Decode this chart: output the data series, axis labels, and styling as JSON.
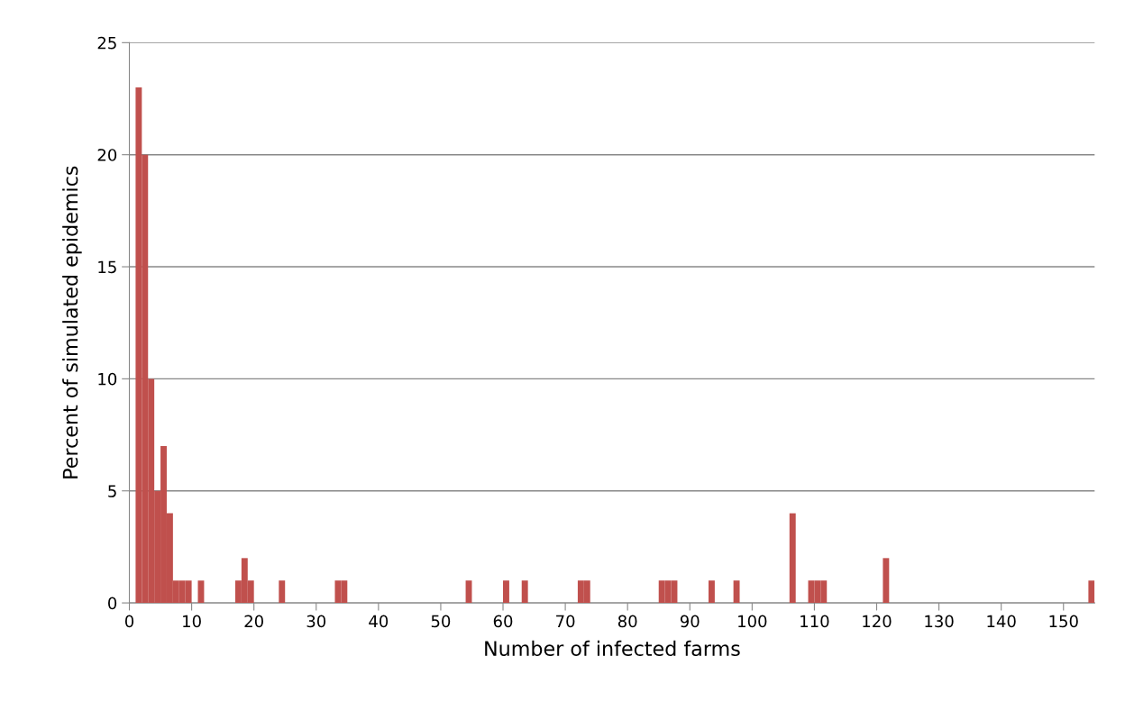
{
  "chart_data": {
    "type": "histogram",
    "xlabel": "Number of infected farms",
    "ylabel": "Percent of simulated epidemics",
    "bins": [
      0,
      1,
      2,
      3,
      4,
      5,
      6,
      7,
      8,
      9,
      10,
      11,
      12,
      13,
      14,
      15,
      16,
      17,
      18,
      19,
      20,
      21,
      22,
      23,
      24,
      25,
      26,
      27,
      28,
      29,
      30,
      31,
      32,
      33,
      34,
      35,
      36,
      37,
      38,
      39,
      40,
      41,
      42,
      43,
      44,
      45,
      46,
      47,
      48,
      49,
      50,
      51,
      52,
      53,
      54,
      55,
      56,
      57,
      58,
      59,
      60,
      61,
      62,
      63,
      64,
      65,
      66,
      67,
      68,
      69,
      70,
      71,
      72,
      73,
      74,
      75,
      76,
      77,
      78,
      79,
      80,
      81,
      82,
      83,
      84,
      85,
      86,
      87,
      88,
      89,
      90,
      91,
      92,
      93,
      94,
      95,
      96,
      97,
      98,
      99,
      100,
      101,
      102,
      103,
      104,
      105,
      106,
      107,
      108,
      109,
      110,
      111,
      112,
      113,
      114,
      115,
      116,
      117,
      118,
      119,
      120,
      121,
      122,
      123,
      124,
      125,
      126,
      127,
      128,
      129,
      130,
      131,
      132,
      133,
      134,
      135,
      136,
      137,
      138,
      139,
      140,
      141,
      142,
      143,
      144,
      145,
      146,
      147,
      148,
      149,
      150,
      151,
      152,
      153,
      154,
      155
    ],
    "values": [
      0,
      23,
      20,
      10,
      5,
      7,
      4,
      1,
      1,
      1,
      0,
      1,
      0,
      0,
      0,
      0,
      0,
      1,
      2,
      1,
      0,
      0,
      0,
      0,
      1,
      0,
      0,
      0,
      0,
      0,
      0,
      0,
      0,
      1,
      1,
      0,
      0,
      0,
      0,
      0,
      0,
      0,
      0,
      0,
      0,
      0,
      0,
      0,
      0,
      0,
      0,
      0,
      0,
      0,
      1,
      0,
      0,
      0,
      0,
      0,
      1,
      0,
      0,
      1,
      0,
      0,
      0,
      0,
      0,
      0,
      0,
      0,
      1,
      1,
      0,
      0,
      0,
      0,
      0,
      0,
      0,
      0,
      0,
      0,
      0,
      1,
      1,
      1,
      0,
      0,
      0,
      0,
      0,
      1,
      0,
      0,
      0,
      1,
      0,
      0,
      0,
      0,
      0,
      0,
      0,
      0,
      4,
      0,
      0,
      1,
      1,
      1,
      0,
      0,
      0,
      0,
      0,
      0,
      0,
      0,
      0,
      2,
      0,
      0,
      0,
      0,
      0,
      0,
      0,
      0,
      0,
      0,
      0,
      0,
      0,
      0,
      0,
      0,
      0,
      0,
      0,
      0,
      0,
      0,
      0,
      0,
      0,
      0,
      0,
      0,
      0,
      0,
      0,
      0,
      1
    ],
    "color": "#c0504d",
    "xlim": [
      0,
      155
    ],
    "xticks": [
      0,
      10,
      20,
      30,
      40,
      50,
      60,
      70,
      80,
      90,
      100,
      110,
      120,
      130,
      140,
      150
    ],
    "ylim": [
      0,
      25
    ],
    "yticks": [
      0,
      5,
      10,
      15,
      20,
      25
    ],
    "grid": "y",
    "legend": false
  }
}
